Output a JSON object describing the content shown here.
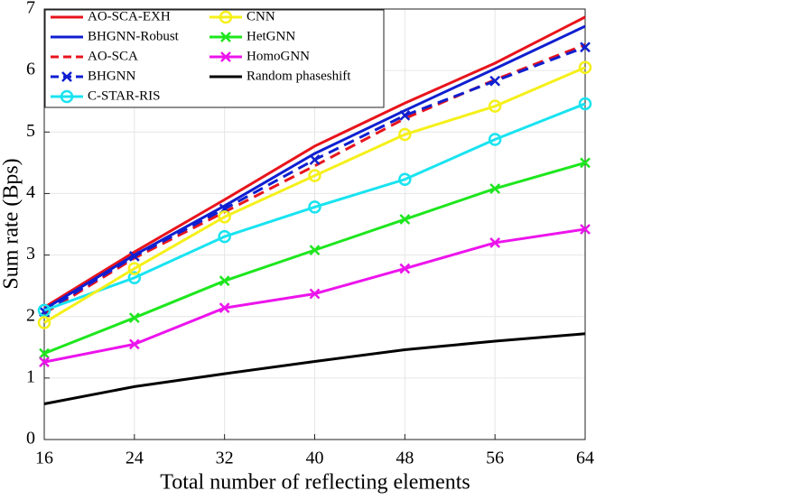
{
  "chart_data": {
    "type": "line",
    "xlabel": "Total number of reflecting elements",
    "ylabel": "Sum rate (Bps)",
    "x": [
      16,
      24,
      32,
      40,
      48,
      56,
      64
    ],
    "xlim": [
      16,
      64
    ],
    "xticks": [
      16,
      24,
      32,
      40,
      48,
      56,
      64
    ],
    "ylim": [
      0,
      7
    ],
    "yticks": [
      0,
      1,
      2,
      3,
      4,
      5,
      6,
      7
    ],
    "grid": true,
    "legend": "upper left",
    "series": [
      {
        "name": "AO-SCA-EXH",
        "color": "#e8141c",
        "dash": "solid",
        "marker": "none",
        "values": [
          2.15,
          3.05,
          3.9,
          4.77,
          5.47,
          6.12,
          6.87
        ]
      },
      {
        "name": "BHGNN-Robust",
        "color": "#0f1fd0",
        "dash": "solid",
        "marker": "none",
        "values": [
          2.12,
          3.0,
          3.8,
          4.65,
          5.35,
          6.03,
          6.72
        ]
      },
      {
        "name": "AO-SCA",
        "color": "#e8141c",
        "dash": "dashed",
        "marker": "none",
        "values": [
          2.05,
          2.95,
          3.7,
          4.45,
          5.22,
          5.85,
          6.42
        ]
      },
      {
        "name": "BHGNN",
        "color": "#0f1fd0",
        "dash": "dashed",
        "marker": "x",
        "values": [
          2.08,
          2.98,
          3.75,
          4.55,
          5.27,
          5.83,
          6.38
        ]
      },
      {
        "name": "C-STAR-RIS",
        "color": "#19e3f0",
        "dash": "solid",
        "marker": "o",
        "values": [
          2.1,
          2.63,
          3.3,
          3.78,
          4.23,
          4.88,
          5.46
        ]
      },
      {
        "name": "CNN",
        "color": "#f5f01a",
        "dash": "solid",
        "marker": "o",
        "values": [
          1.9,
          2.78,
          3.62,
          4.29,
          4.96,
          5.42,
          6.05
        ]
      },
      {
        "name": "HetGNN",
        "color": "#1ee61e",
        "dash": "solid",
        "marker": "x",
        "values": [
          1.4,
          1.98,
          2.58,
          3.08,
          3.58,
          4.08,
          4.5
        ]
      },
      {
        "name": "HomoGNN",
        "color": "#ec14ec",
        "dash": "solid",
        "marker": "x",
        "values": [
          1.26,
          1.55,
          2.14,
          2.37,
          2.78,
          3.2,
          3.42
        ]
      },
      {
        "name": "Random phaseshift",
        "color": "#000000",
        "dash": "solid",
        "marker": "none",
        "values": [
          0.58,
          0.86,
          1.07,
          1.27,
          1.46,
          1.6,
          1.72
        ]
      }
    ]
  }
}
